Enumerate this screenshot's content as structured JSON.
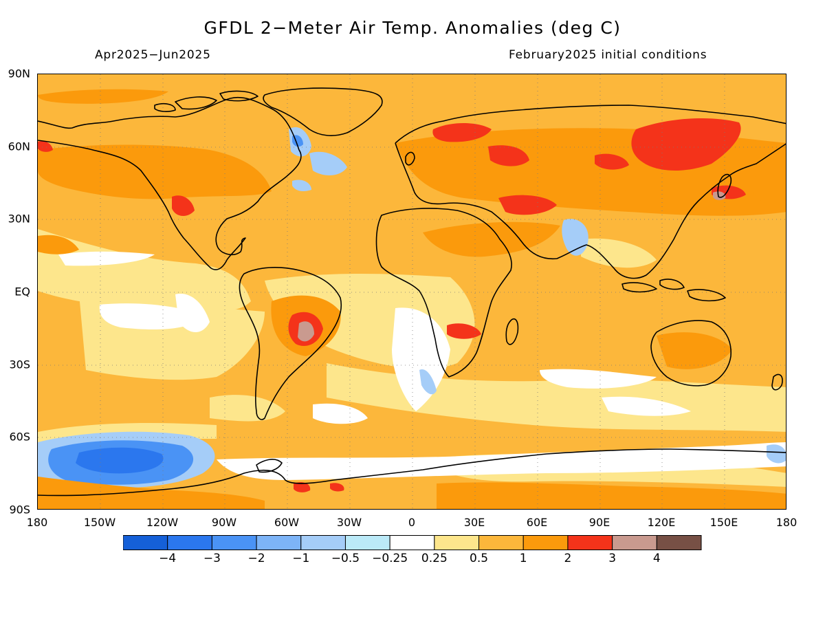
{
  "title": "GFDL 2−Meter Air Temp. Anomalies (deg C)",
  "season": "Apr2025−Jun2025",
  "init": "February2025 initial conditions",
  "lat_labels": [
    "90N",
    "60N",
    "30N",
    "EQ",
    "30S",
    "60S",
    "90S"
  ],
  "lon_labels": [
    "180",
    "150W",
    "120W",
    "90W",
    "60W",
    "30W",
    "0",
    "30E",
    "60E",
    "90E",
    "120E",
    "150E",
    "180"
  ],
  "colorbar": {
    "colors": [
      "#1560d8",
      "#2b77ee",
      "#4a93f5",
      "#7db4f7",
      "#a5cdf8",
      "#bbeaf8",
      "#ffffff",
      "#fde68c",
      "#fcb73b",
      "#fb9a0c",
      "#f4331a",
      "#c99a8f",
      "#775045"
    ],
    "labels": [
      "−4",
      "−3",
      "−2",
      "−1",
      "−0.5",
      "−0.25",
      "0.25",
      "0.5",
      "1",
      "2",
      "3",
      "4"
    ]
  },
  "palette": {
    "base": "#fcb73b",
    "warm": "#fb9a0c",
    "hot": "#f4331a",
    "extreme": "#c99a8f",
    "mild": "#fde68c",
    "neutral": "#ffffff",
    "cool": "#a5cdf8",
    "cold": "#4a93f5",
    "very_cold": "#2b77ee"
  }
}
